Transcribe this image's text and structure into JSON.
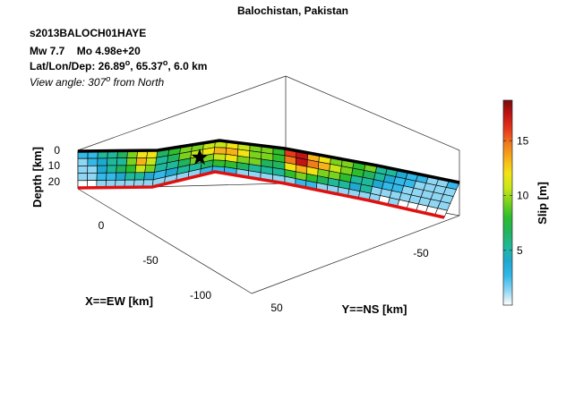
{
  "chart_data": {
    "type": "3d-slip-model",
    "title": "Balochistan, Pakistan",
    "event_id": "s2013BALOCH01HAYE",
    "magnitude_label": "Mw 7.7",
    "moment_label": "Mo 4.98e+20",
    "location": {
      "prefix": "Lat/Lon/Dep: ",
      "lat": "26.89",
      "lon": "65.37",
      "depth": "6.0 km",
      "degree_mark": "o"
    },
    "view_angle": {
      "prefix": "View angle: ",
      "value": "307",
      "suffix": " from North",
      "degree_mark": "o"
    },
    "xlabel": "X==EW [km]",
    "ylabel": "Y==NS [km]",
    "zlabel": "Depth [km]",
    "x_ticks": [
      "0",
      "-50",
      "-100"
    ],
    "y_ticks": [
      "50",
      "-50"
    ],
    "z_ticks": [
      "0",
      "10",
      "20"
    ],
    "colorbar": {
      "label": "Slip [m]",
      "range": [
        0,
        18.7
      ],
      "ticks": [
        "15",
        "10",
        "5"
      ],
      "tick_values": [
        15,
        10,
        5
      ],
      "colormap": [
        "#ffffff",
        "#8fd6f2",
        "#33b8e8",
        "#1fa8d0",
        "#20b89a",
        "#22b35e",
        "#2dbd2d",
        "#7ad11e",
        "#c8e617",
        "#f2e414",
        "#f7b11a",
        "#f07c1c",
        "#e8381c",
        "#c21414",
        "#7a0a0a"
      ]
    },
    "fault_segments": 4,
    "rows_per_segment": 5,
    "segment_columns": [
      8,
      11,
      8,
      8
    ],
    "slip_m": [
      [
        [
          3,
          3,
          5,
          5,
          7,
          9,
          12,
          12
        ],
        [
          2,
          3,
          4,
          5,
          6,
          9,
          13,
          11
        ],
        [
          1,
          2,
          4,
          5,
          7,
          8,
          11,
          9
        ],
        [
          1,
          2,
          3,
          3,
          4,
          5,
          6,
          4
        ],
        [
          0,
          0,
          1,
          1,
          2,
          2,
          2,
          1
        ]
      ],
      [
        [
          7,
          8,
          9,
          10,
          11,
          11,
          12,
          11,
          10,
          9,
          8
        ],
        [
          6,
          7,
          9,
          11,
          12,
          13,
          14,
          12,
          10,
          9,
          8
        ],
        [
          5,
          6,
          7,
          9,
          10,
          11,
          12,
          10,
          9,
          7,
          7
        ],
        [
          3,
          4,
          5,
          6,
          7,
          8,
          8,
          7,
          6,
          5,
          5
        ],
        [
          1,
          1,
          2,
          2,
          3,
          3,
          3,
          2,
          2,
          1,
          2
        ]
      ],
      [
        [
          16,
          17,
          14,
          12,
          10,
          9,
          8,
          9
        ],
        [
          15,
          18,
          15,
          13,
          11,
          9,
          8,
          7
        ],
        [
          12,
          14,
          12,
          10,
          9,
          8,
          6,
          6
        ],
        [
          8,
          9,
          8,
          7,
          6,
          5,
          4,
          5
        ],
        [
          2,
          3,
          3,
          2,
          2,
          2,
          1,
          2
        ]
      ],
      [
        [
          6,
          5,
          4,
          3,
          3,
          2,
          2,
          3
        ],
        [
          5,
          4,
          3,
          3,
          2,
          2,
          1,
          2
        ],
        [
          4,
          3,
          3,
          2,
          1,
          1,
          2,
          2
        ],
        [
          2,
          2,
          1,
          1,
          1,
          1,
          1,
          1
        ],
        [
          1,
          0,
          1,
          0,
          0,
          0,
          0,
          0
        ]
      ]
    ],
    "hypocenter": "star",
    "grid": true
  }
}
